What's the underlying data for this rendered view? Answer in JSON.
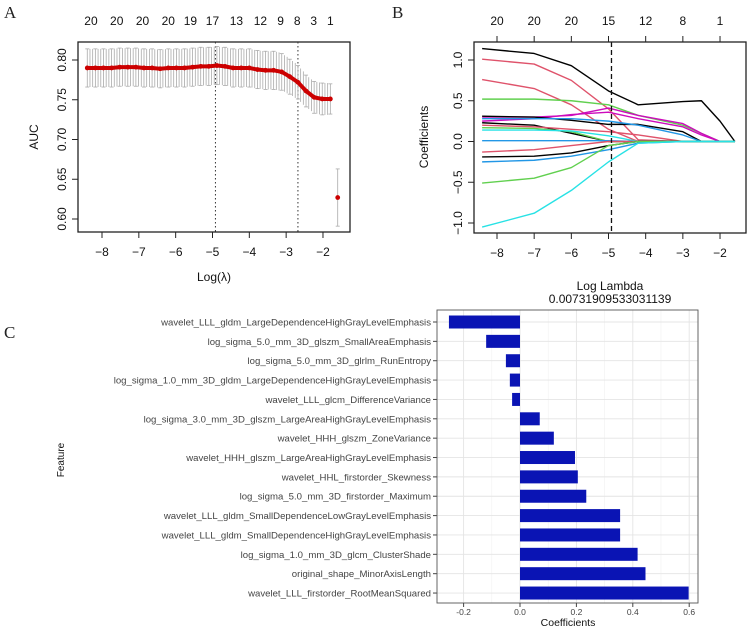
{
  "panel_labels": {
    "a": "A",
    "b": "B",
    "c": "C"
  },
  "chart_data": [
    {
      "type": "line",
      "panel": "A",
      "xlabel": "Log(λ)",
      "ylabel": "AUC",
      "xlim": [
        -8.5,
        -1.4
      ],
      "ylim": [
        0.585,
        0.82
      ],
      "x_ticks": [
        -8,
        -7,
        -6,
        -5,
        -4,
        -3,
        -2
      ],
      "x_tick_labels": [
        "−8",
        "−7",
        "−6",
        "−5",
        "−4",
        "−3",
        "−2"
      ],
      "y_ticks": [
        0.6,
        0.65,
        0.7,
        0.75,
        0.8
      ],
      "y_tick_labels": [
        "0.60",
        "0.65",
        "0.70",
        "0.75",
        "0.80"
      ],
      "top_ticks": [
        -8.3,
        -7.6,
        -6.9,
        -6.2,
        -5.6,
        -5.0,
        -4.35,
        -3.7,
        -3.15,
        -2.7,
        -2.25,
        -1.8
      ],
      "top_tick_labels": [
        "20",
        "20",
        "20",
        "20",
        "19",
        "17",
        "13",
        "12",
        "9",
        "8",
        "3",
        "1"
      ],
      "vlines": [
        -4.92,
        -2.68
      ],
      "series": [
        {
          "name": "AUC",
          "color": "#cc0000",
          "error_color": "#aaaaaa",
          "x": [
            -8.4,
            -8.18,
            -7.96,
            -7.74,
            -7.52,
            -7.3,
            -7.08,
            -6.86,
            -6.64,
            -6.42,
            -6.2,
            -5.98,
            -5.76,
            -5.54,
            -5.32,
            -5.1,
            -4.88,
            -4.66,
            -4.44,
            -4.22,
            -4.0,
            -3.78,
            -3.56,
            -3.34,
            -3.12,
            -2.9,
            -2.68,
            -2.46,
            -2.24,
            -2.02,
            -1.8,
            -1.6
          ],
          "y": [
            0.79,
            0.79,
            0.79,
            0.79,
            0.791,
            0.791,
            0.791,
            0.79,
            0.79,
            0.789,
            0.79,
            0.79,
            0.79,
            0.791,
            0.792,
            0.792,
            0.793,
            0.792,
            0.79,
            0.79,
            0.79,
            0.788,
            0.787,
            0.787,
            0.785,
            0.779,
            0.772,
            0.761,
            0.753,
            0.751,
            0.751,
            0.627
          ],
          "se": [
            0.024,
            0.024,
            0.024,
            0.024,
            0.024,
            0.024,
            0.024,
            0.024,
            0.024,
            0.024,
            0.024,
            0.024,
            0.024,
            0.024,
            0.024,
            0.024,
            0.024,
            0.024,
            0.024,
            0.024,
            0.024,
            0.024,
            0.024,
            0.024,
            0.023,
            0.022,
            0.021,
            0.02,
            0.02,
            0.02,
            0.019,
            0.036
          ]
        }
      ]
    },
    {
      "type": "line",
      "panel": "B",
      "xlabel": "Log Lambda",
      "subtitle": "0.00731909533031139",
      "ylabel": "Coefficients",
      "xlim": [
        -8.6,
        -1.4
      ],
      "ylim": [
        -1.1,
        1.25
      ],
      "x_ticks": [
        -8,
        -7,
        -6,
        -5,
        -4,
        -3,
        -2
      ],
      "x_tick_labels": [
        "−8",
        "−7",
        "−6",
        "−5",
        "−4",
        "−3",
        "−2"
      ],
      "y_ticks": [
        -1.0,
        -0.5,
        0.0,
        0.5,
        1.0
      ],
      "y_tick_labels": [
        "−1.0",
        "−0.5",
        "0.0",
        "0.5",
        "1.0"
      ],
      "top_ticks": [
        -8,
        -7,
        -6,
        -5,
        -4,
        -3,
        -2
      ],
      "top_tick_labels": [
        "20",
        "20",
        "20",
        "15",
        "12",
        "8",
        "1"
      ],
      "vline": -4.92,
      "x": [
        -8.4,
        -7,
        -6,
        -5,
        -4.2,
        -3,
        -2.5,
        -2,
        -1.6
      ],
      "series": [
        {
          "color": "#000000",
          "y": [
            1.14,
            1.08,
            0.93,
            0.62,
            0.45,
            0.49,
            0.5,
            0.25,
            0
          ]
        },
        {
          "color": "#df536b",
          "y": [
            1.01,
            0.95,
            0.75,
            0.4,
            0.02,
            0,
            0,
            0,
            0
          ]
        },
        {
          "color": "#df536b",
          "y": [
            0.76,
            0.65,
            0.45,
            0.15,
            0,
            0,
            0,
            0,
            0
          ]
        },
        {
          "color": "#61d04f",
          "y": [
            0.52,
            0.52,
            0.5,
            0.45,
            0.32,
            0.2,
            0.1,
            0,
            0
          ]
        },
        {
          "color": "#cd0bbc",
          "y": [
            0.3,
            0.3,
            0.32,
            0.41,
            0.32,
            0.22,
            0.1,
            0,
            0
          ]
        },
        {
          "color": "#cd0bbc",
          "y": [
            0.25,
            0.28,
            0.33,
            0.36,
            0.28,
            0.18,
            0.08,
            0,
            0
          ]
        },
        {
          "color": "#000000",
          "y": [
            0.31,
            0.3,
            0.26,
            0.21,
            0.21,
            0.12,
            0,
            0,
            0
          ]
        },
        {
          "color": "#2297e6",
          "y": [
            0.28,
            0.28,
            0.28,
            0.25,
            0.2,
            0.08,
            0,
            0,
            0
          ]
        },
        {
          "color": "#000000",
          "y": [
            0.23,
            0.2,
            0.1,
            0,
            0,
            0,
            0,
            0,
            0
          ]
        },
        {
          "color": "#df536b",
          "y": [
            0.2,
            0.18,
            0.15,
            0.12,
            0.08,
            0,
            0,
            0,
            0
          ]
        },
        {
          "color": "#61d04f",
          "y": [
            0.17,
            0.16,
            0.12,
            0,
            0,
            0,
            0,
            0,
            0
          ]
        },
        {
          "color": "#28e2e5",
          "y": [
            0.14,
            0.14,
            0.13,
            0.07,
            0,
            0,
            0,
            0,
            0
          ]
        },
        {
          "color": "#2297e6",
          "y": [
            0.01,
            0.01,
            0.01,
            0.01,
            0,
            0,
            0,
            0,
            0
          ]
        },
        {
          "color": "#df536b",
          "y": [
            -0.13,
            -0.1,
            -0.05,
            0,
            0,
            0,
            0,
            0,
            0
          ]
        },
        {
          "color": "#000000",
          "y": [
            -0.19,
            -0.18,
            -0.14,
            -0.05,
            0,
            0,
            0,
            0,
            0
          ]
        },
        {
          "color": "#2297e6",
          "y": [
            -0.25,
            -0.23,
            -0.18,
            -0.1,
            -0.02,
            0,
            0,
            0,
            0
          ]
        },
        {
          "color": "#61d04f",
          "y": [
            -0.51,
            -0.45,
            -0.32,
            -0.05,
            0,
            0,
            0,
            0,
            0
          ]
        },
        {
          "color": "#28e2e5",
          "y": [
            -1.05,
            -0.88,
            -0.6,
            -0.25,
            -0.02,
            0,
            0,
            0,
            0
          ]
        }
      ]
    },
    {
      "type": "bar",
      "panel": "C",
      "orientation": "horizontal",
      "xlabel": "Coefficients",
      "ylabel": "Feature",
      "xlim": [
        -0.29,
        0.63
      ],
      "x_ticks": [
        -0.2,
        0.0,
        0.2,
        0.4,
        0.6
      ],
      "x_tick_labels": [
        "-0.2",
        "0.0",
        "0.2",
        "0.4",
        "0.6"
      ],
      "bar_color": "#0a14b4",
      "grid": true,
      "categories": [
        "wavelet_LLL_gldm_LargeDependenceHighGrayLevelEmphasis",
        "log_sigma_5.0_mm_3D_glszm_SmallAreaEmphasis",
        "log_sigma_5.0_mm_3D_glrlm_RunEntropy",
        "log_sigma_1.0_mm_3D_gldm_LargeDependenceHighGrayLevelEmphasis",
        "wavelet_LLL_glcm_DifferenceVariance",
        "log_sigma_3.0_mm_3D_glszm_LargeAreaHighGrayLevelEmphasis",
        "wavelet_HHH_glszm_ZoneVariance",
        "wavelet_HHH_glszm_LargeAreaHighGrayLevelEmphasis",
        "wavelet_HHL_firstorder_Skewness",
        "log_sigma_5.0_mm_3D_firstorder_Maximum",
        "wavelet_LLL_gldm_SmallDependenceLowGrayLevelEmphasis",
        "wavelet_LLL_gldm_SmallDependenceHighGrayLevelEmphasis",
        "log_sigma_1.0_mm_3D_glcm_ClusterShade",
        "original_shape_MinorAxisLength",
        "wavelet_LLL_firstorder_RootMeanSquared"
      ],
      "values": [
        -0.252,
        -0.12,
        -0.05,
        -0.036,
        -0.028,
        0.07,
        0.12,
        0.195,
        0.205,
        0.235,
        0.355,
        0.355,
        0.417,
        0.445,
        0.598
      ]
    }
  ]
}
